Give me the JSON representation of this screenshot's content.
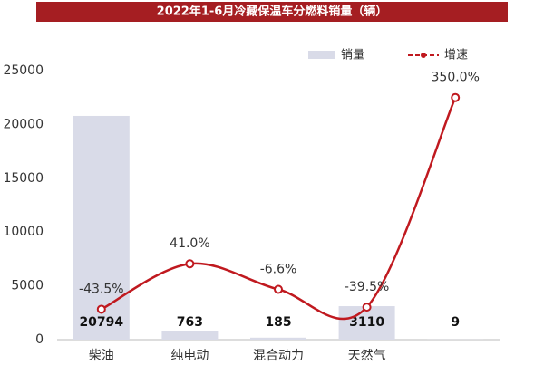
{
  "chart_data": {
    "type": "bar-line",
    "title": "2022年1-6月冷藏保温车分燃料销量（辆）",
    "categories": [
      "柴油",
      "纯电动",
      "混合动力",
      "天然气",
      null
    ],
    "series": [
      {
        "name": "销量",
        "color": "#d9dbe8",
        "values": [
          20794,
          763,
          185,
          3110,
          9
        ]
      },
      {
        "name": "增速",
        "color": "#c0191f",
        "axis": "y2",
        "values": [
          -43.5,
          41.0,
          -6.6,
          -39.5,
          350.0
        ],
        "value_labels": [
          "-43.5%",
          "41.0%",
          "-6.6%",
          "-39.5%",
          "350.0%"
        ]
      }
    ],
    "ylim": [
      0,
      25000
    ],
    "yticks": [
      0,
      5000,
      10000,
      15000,
      20000,
      25000
    ],
    "y2lim": [
      -100,
      400
    ],
    "grid": false,
    "legend": "top-right"
  }
}
